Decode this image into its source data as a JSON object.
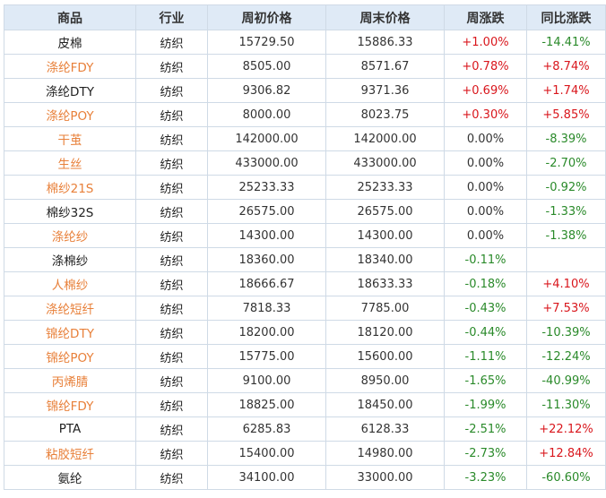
{
  "headers": [
    "商品",
    "行业",
    "周初价格",
    "周末价格",
    "周涨跌",
    "同比涨跌"
  ],
  "colors": {
    "link": "#e8803a",
    "up": "#d9161c",
    "down": "#2a8a2a",
    "header_bg": "#dfeaf6",
    "border": "#cfdae6"
  },
  "rows": [
    {
      "name": "皮棉",
      "linked": false,
      "industry": "纺织",
      "start_price": "15729.50",
      "end_price": "15886.33",
      "week_change": "+1.00%",
      "yoy_change": "-14.41%"
    },
    {
      "name": "涤纶FDY",
      "linked": true,
      "industry": "纺织",
      "start_price": "8505.00",
      "end_price": "8571.67",
      "week_change": "+0.78%",
      "yoy_change": "+8.74%"
    },
    {
      "name": "涤纶DTY",
      "linked": false,
      "industry": "纺织",
      "start_price": "9306.82",
      "end_price": "9371.36",
      "week_change": "+0.69%",
      "yoy_change": "+1.74%"
    },
    {
      "name": "涤纶POY",
      "linked": true,
      "industry": "纺织",
      "start_price": "8000.00",
      "end_price": "8023.75",
      "week_change": "+0.30%",
      "yoy_change": "+5.85%"
    },
    {
      "name": "干茧",
      "linked": true,
      "industry": "纺织",
      "start_price": "142000.00",
      "end_price": "142000.00",
      "week_change": "0.00%",
      "yoy_change": "-8.39%"
    },
    {
      "name": "生丝",
      "linked": true,
      "industry": "纺织",
      "start_price": "433000.00",
      "end_price": "433000.00",
      "week_change": "0.00%",
      "yoy_change": "-2.70%"
    },
    {
      "name": "棉纱21S",
      "linked": true,
      "industry": "纺织",
      "start_price": "25233.33",
      "end_price": "25233.33",
      "week_change": "0.00%",
      "yoy_change": "-0.92%"
    },
    {
      "name": "棉纱32S",
      "linked": false,
      "industry": "纺织",
      "start_price": "26575.00",
      "end_price": "26575.00",
      "week_change": "0.00%",
      "yoy_change": "-1.33%"
    },
    {
      "name": "涤纶纱",
      "linked": true,
      "industry": "纺织",
      "start_price": "14300.00",
      "end_price": "14300.00",
      "week_change": "0.00%",
      "yoy_change": "-1.38%"
    },
    {
      "name": "涤棉纱",
      "linked": false,
      "industry": "纺织",
      "start_price": "18360.00",
      "end_price": "18340.00",
      "week_change": "-0.11%",
      "yoy_change": ""
    },
    {
      "name": "人棉纱",
      "linked": true,
      "industry": "纺织",
      "start_price": "18666.67",
      "end_price": "18633.33",
      "week_change": "-0.18%",
      "yoy_change": "+4.10%"
    },
    {
      "name": "涤纶短纤",
      "linked": true,
      "industry": "纺织",
      "start_price": "7818.33",
      "end_price": "7785.00",
      "week_change": "-0.43%",
      "yoy_change": "+7.53%"
    },
    {
      "name": "锦纶DTY",
      "linked": true,
      "industry": "纺织",
      "start_price": "18200.00",
      "end_price": "18120.00",
      "week_change": "-0.44%",
      "yoy_change": "-10.39%"
    },
    {
      "name": "锦纶POY",
      "linked": true,
      "industry": "纺织",
      "start_price": "15775.00",
      "end_price": "15600.00",
      "week_change": "-1.11%",
      "yoy_change": "-12.24%"
    },
    {
      "name": "丙烯腈",
      "linked": true,
      "industry": "纺织",
      "start_price": "9100.00",
      "end_price": "8950.00",
      "week_change": "-1.65%",
      "yoy_change": "-40.99%"
    },
    {
      "name": "锦纶FDY",
      "linked": true,
      "industry": "纺织",
      "start_price": "18825.00",
      "end_price": "18450.00",
      "week_change": "-1.99%",
      "yoy_change": "-11.30%"
    },
    {
      "name": "PTA",
      "linked": false,
      "industry": "纺织",
      "start_price": "6285.83",
      "end_price": "6128.33",
      "week_change": "-2.51%",
      "yoy_change": "+22.12%"
    },
    {
      "name": "粘胶短纤",
      "linked": true,
      "industry": "纺织",
      "start_price": "15400.00",
      "end_price": "14980.00",
      "week_change": "-2.73%",
      "yoy_change": "+12.84%"
    },
    {
      "name": "氨纶",
      "linked": false,
      "industry": "纺织",
      "start_price": "34100.00",
      "end_price": "33000.00",
      "week_change": "-3.23%",
      "yoy_change": "-60.60%"
    }
  ]
}
